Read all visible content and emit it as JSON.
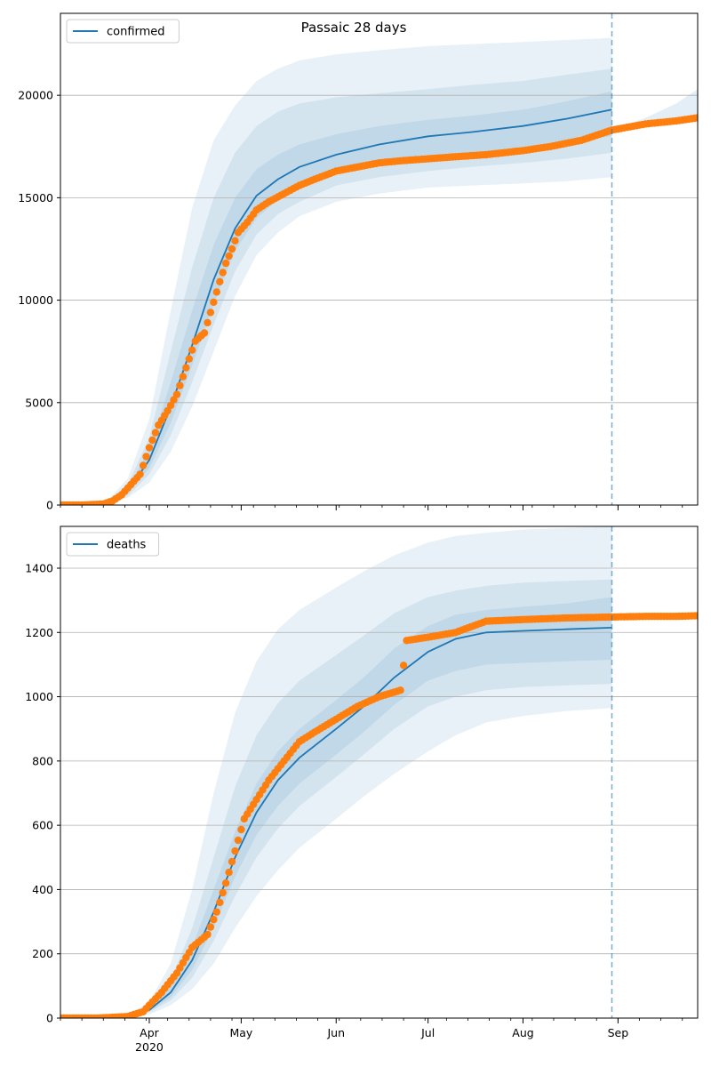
{
  "figure": {
    "title": "Passaic 28 days"
  },
  "colors": {
    "line": "#1f77b4",
    "band": "#1f77b4",
    "observed": "#ff7f0e",
    "grid": "#b0b0b0",
    "forecast_line": "#1f77b4"
  },
  "chart_data": [
    {
      "type": "line",
      "name": "confirmed-panel",
      "legend": "confirmed",
      "legend_position": "top-left",
      "grid": "horizontal",
      "ylim": [
        0,
        24000
      ],
      "yticks": [
        0,
        5000,
        10000,
        15000,
        20000
      ],
      "xlim": [
        "2020-03-03",
        "2020-09-27"
      ],
      "forecast_start": "2020-08-30",
      "x": [
        "2020-03-03",
        "2020-03-18",
        "2020-03-25",
        "2020-04-01",
        "2020-04-08",
        "2020-04-15",
        "2020-04-22",
        "2020-04-29",
        "2020-05-06",
        "2020-05-13",
        "2020-05-20",
        "2020-06-01",
        "2020-06-15",
        "2020-07-01",
        "2020-07-15",
        "2020-08-01",
        "2020-08-15",
        "2020-08-30"
      ],
      "model_median": [
        0,
        100,
        700,
        2200,
        4800,
        7800,
        11000,
        13500,
        15100,
        15900,
        16500,
        17100,
        17600,
        18000,
        18200,
        18500,
        18850,
        19300
      ],
      "bands": [
        {
          "lower": [
            0,
            80,
            350,
            1100,
            2600,
            4800,
            7500,
            10200,
            12200,
            13300,
            14100,
            14800,
            15200,
            15500,
            15600,
            15700,
            15800,
            16000
          ],
          "upper": [
            0,
            150,
            1300,
            4200,
            9500,
            14500,
            17800,
            19500,
            20700,
            21300,
            21700,
            22000,
            22200,
            22400,
            22500,
            22600,
            22700,
            22800
          ]
        },
        {
          "lower": [
            0,
            90,
            450,
            1500,
            3400,
            6000,
            8800,
            11400,
            13200,
            14200,
            14800,
            15600,
            16000,
            16300,
            16500,
            16700,
            16900,
            17200
          ],
          "upper": [
            0,
            130,
            1000,
            3300,
            7500,
            11600,
            15000,
            17200,
            18500,
            19200,
            19600,
            19900,
            20100,
            20300,
            20500,
            20700,
            21000,
            21300
          ]
        },
        {
          "lower": [
            0,
            95,
            550,
            1800,
            4000,
            6800,
            9800,
            12400,
            14000,
            14900,
            15500,
            16200,
            16700,
            17000,
            17200,
            17400,
            17700,
            18000
          ],
          "upper": [
            0,
            115,
            850,
            2700,
            6000,
            9500,
            12700,
            15000,
            16400,
            17100,
            17600,
            18100,
            18500,
            18800,
            19000,
            19300,
            19700,
            20200
          ]
        }
      ],
      "future_band": {
        "x": [
          "2020-08-30",
          "2020-09-10",
          "2020-09-20",
          "2020-09-27"
        ],
        "lower": [
          18300,
          18600,
          18700,
          18800
        ],
        "upper": [
          18300,
          18900,
          19600,
          20300
        ]
      },
      "future_median": {
        "x": [
          "2020-08-30",
          "2020-09-10",
          "2020-09-20",
          "2020-09-27"
        ],
        "values": [
          18300,
          18500,
          18700,
          18800
        ]
      },
      "observed": {
        "x": [
          "2020-03-03",
          "2020-03-10",
          "2020-03-17",
          "2020-03-20",
          "2020-03-23",
          "2020-03-26",
          "2020-03-29",
          "2020-04-01",
          "2020-04-04",
          "2020-04-07",
          "2020-04-10",
          "2020-04-13",
          "2020-04-16",
          "2020-04-19",
          "2020-04-22",
          "2020-04-24",
          "2020-04-26",
          "2020-04-28",
          "2020-04-30",
          "2020-05-03",
          "2020-05-06",
          "2020-05-10",
          "2020-05-15",
          "2020-05-20",
          "2020-05-25",
          "2020-06-01",
          "2020-06-08",
          "2020-06-15",
          "2020-06-22",
          "2020-07-01",
          "2020-07-10",
          "2020-07-20",
          "2020-08-01",
          "2020-08-10",
          "2020-08-20",
          "2020-08-30",
          "2020-09-10",
          "2020-09-20",
          "2020-09-27"
        ],
        "values": [
          0,
          0,
          50,
          200,
          500,
          1000,
          1500,
          2800,
          3900,
          4600,
          5400,
          6700,
          8000,
          8400,
          9900,
          10900,
          11800,
          12500,
          13300,
          13800,
          14400,
          14800,
          15200,
          15600,
          15900,
          16300,
          16500,
          16700,
          16800,
          16900,
          17000,
          17100,
          17300,
          17500,
          17800,
          18300,
          18600,
          18750,
          18900
        ]
      }
    },
    {
      "type": "line",
      "name": "deaths-panel",
      "legend": "deaths",
      "legend_position": "top-left",
      "grid": "horizontal",
      "ylim": [
        0,
        1530
      ],
      "yticks": [
        0,
        200,
        400,
        600,
        800,
        1000,
        1200,
        1400
      ],
      "xlim": [
        "2020-03-03",
        "2020-09-27"
      ],
      "xticks": [
        {
          "date": "2020-04-01",
          "label": "Apr",
          "sublabel": "2020"
        },
        {
          "date": "2020-05-01",
          "label": "May"
        },
        {
          "date": "2020-06-01",
          "label": "Jun"
        },
        {
          "date": "2020-07-01",
          "label": "Jul"
        },
        {
          "date": "2020-08-01",
          "label": "Aug"
        },
        {
          "date": "2020-09-01",
          "label": "Sep"
        }
      ],
      "forecast_start": "2020-08-30",
      "x": [
        "2020-03-03",
        "2020-03-25",
        "2020-04-01",
        "2020-04-08",
        "2020-04-15",
        "2020-04-22",
        "2020-04-29",
        "2020-05-06",
        "2020-05-13",
        "2020-05-20",
        "2020-06-01",
        "2020-06-10",
        "2020-06-20",
        "2020-07-01",
        "2020-07-10",
        "2020-07-20",
        "2020-08-01",
        "2020-08-15",
        "2020-08-30"
      ],
      "model_median": [
        0,
        5,
        25,
        80,
        180,
        330,
        500,
        640,
        740,
        810,
        900,
        970,
        1060,
        1140,
        1180,
        1200,
        1205,
        1210,
        1215
      ],
      "bands": [
        {
          "lower": [
            0,
            3,
            12,
            40,
            90,
            170,
            280,
            380,
            460,
            530,
            620,
            690,
            760,
            830,
            880,
            920,
            940,
            955,
            965
          ],
          "upper": [
            0,
            10,
            50,
            170,
            400,
            700,
            950,
            1110,
            1210,
            1270,
            1340,
            1390,
            1440,
            1480,
            1500,
            1510,
            1520,
            1525,
            1530
          ]
        },
        {
          "lower": [
            0,
            4,
            18,
            55,
            125,
            240,
            380,
            500,
            590,
            660,
            750,
            820,
            900,
            970,
            1000,
            1020,
            1030,
            1035,
            1040
          ],
          "upper": [
            0,
            8,
            38,
            120,
            280,
            500,
            720,
            880,
            980,
            1050,
            1130,
            1190,
            1260,
            1310,
            1330,
            1345,
            1355,
            1360,
            1365
          ]
        },
        {
          "lower": [
            0,
            4,
            21,
            65,
            150,
            280,
            440,
            570,
            660,
            730,
            820,
            890,
            975,
            1050,
            1080,
            1100,
            1105,
            1110,
            1115
          ],
          "upper": [
            0,
            6,
            30,
            100,
            220,
            400,
            580,
            730,
            830,
            900,
            990,
            1060,
            1150,
            1220,
            1255,
            1270,
            1280,
            1290,
            1310
          ]
        }
      ],
      "future_band": null,
      "future_median": null,
      "observed": {
        "x": [
          "2020-03-03",
          "2020-03-15",
          "2020-03-25",
          "2020-03-30",
          "2020-04-05",
          "2020-04-10",
          "2020-04-15",
          "2020-04-20",
          "2020-04-23",
          "2020-04-26",
          "2020-04-29",
          "2020-05-02",
          "2020-05-06",
          "2020-05-10",
          "2020-05-15",
          "2020-05-20",
          "2020-05-25",
          "2020-06-01",
          "2020-06-08",
          "2020-06-15",
          "2020-06-22",
          "2020-06-24",
          "2020-07-01",
          "2020-07-10",
          "2020-07-20",
          "2020-08-01",
          "2020-08-15",
          "2020-08-30",
          "2020-09-10",
          "2020-09-20",
          "2020-09-27"
        ],
        "values": [
          0,
          0,
          5,
          20,
          80,
          140,
          220,
          260,
          330,
          420,
          520,
          620,
          680,
          740,
          800,
          860,
          890,
          930,
          970,
          1000,
          1020,
          1175,
          1185,
          1200,
          1235,
          1240,
          1245,
          1248,
          1250,
          1250,
          1252
        ]
      }
    }
  ]
}
